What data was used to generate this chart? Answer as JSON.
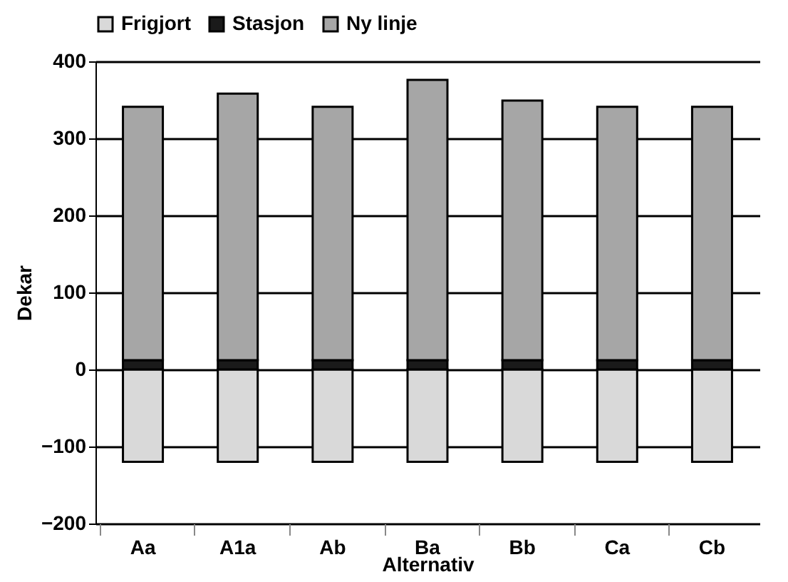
{
  "chart_data": {
    "type": "bar",
    "stacked": true,
    "xlabel": "Alternativ",
    "ylabel": "Dekar",
    "categories": [
      "Aa",
      "A1a",
      "Ab",
      "Ba",
      "Bb",
      "Ca",
      "Cb"
    ],
    "series": [
      {
        "name": "Frigjort",
        "color": "#d9d9d9",
        "values": [
          -120,
          -120,
          -120,
          -120,
          -120,
          -120,
          -120
        ]
      },
      {
        "name": "Stasjon",
        "color": "#1a1a1a",
        "values": [
          12,
          12,
          12,
          12,
          12,
          12,
          12
        ]
      },
      {
        "name": "Ny linje",
        "color": "#a6a6a6",
        "values": [
          329,
          346,
          329,
          364,
          337,
          329,
          329
        ]
      }
    ],
    "ylim": [
      -200,
      400
    ],
    "yticks": [
      -200,
      -100,
      0,
      100,
      200,
      300,
      400
    ],
    "grid": "y",
    "legend": "top"
  }
}
